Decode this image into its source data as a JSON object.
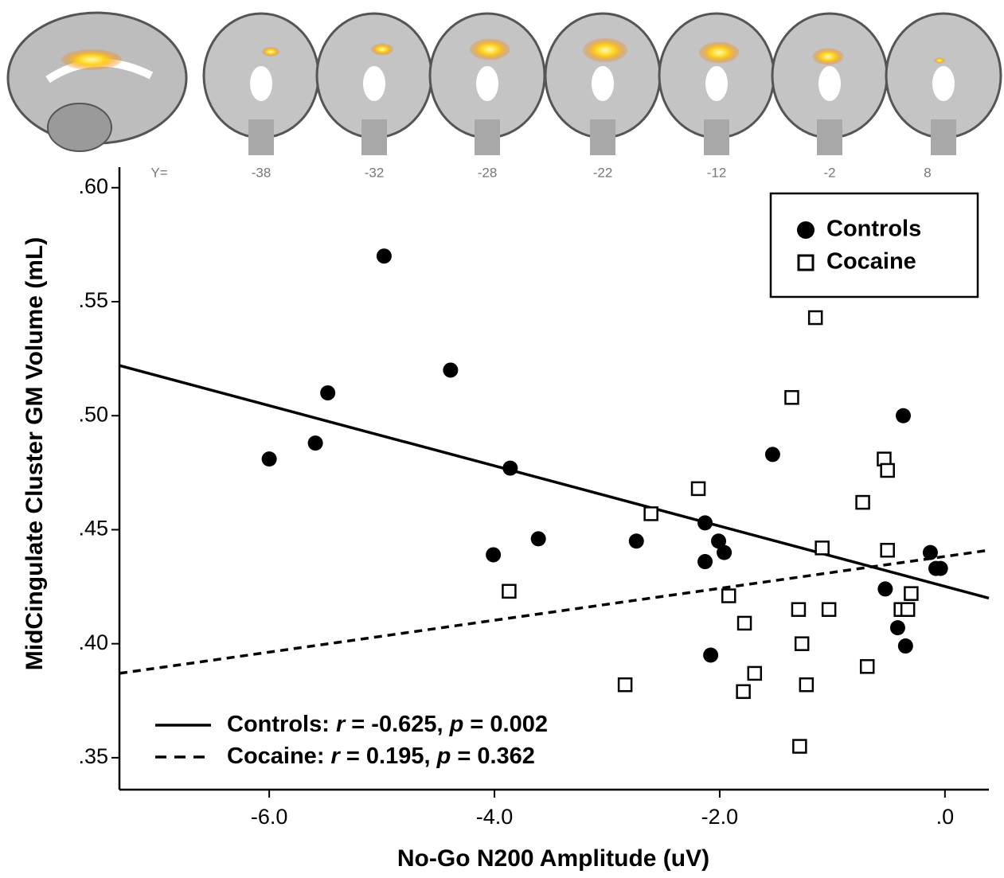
{
  "chart_data": {
    "type": "scatter",
    "xlabel": "No-Go N200 Amplitude (uV)",
    "ylabel": "MidCingulate Cluster GM Volume (mL)",
    "xlim": [
      -7.33,
      0.39
    ],
    "ylim": [
      0.336,
      0.609
    ],
    "xticks": [
      {
        "value": -6,
        "label": "-6.0"
      },
      {
        "value": -4,
        "label": "-4.0"
      },
      {
        "value": -2,
        "label": "-2.0"
      },
      {
        "value": 0,
        "label": ".0"
      }
    ],
    "yticks": [
      {
        "value": 0.35,
        "label": ".35"
      },
      {
        "value": 0.4,
        "label": ".40"
      },
      {
        "value": 0.45,
        "label": ".45"
      },
      {
        "value": 0.5,
        "label": ".50"
      },
      {
        "value": 0.55,
        "label": ".55"
      },
      {
        "value": 0.6,
        "label": ".60"
      }
    ],
    "legend": "upper right",
    "slices": {
      "prefix": "Y=",
      "values": [
        -38,
        -32,
        -28,
        -22,
        -12,
        -2,
        8
      ]
    },
    "series": [
      {
        "name": "Controls",
        "marker": "circle",
        "color": "#000000",
        "x": [
          -6.0,
          -5.59,
          -5.48,
          -4.98,
          -4.39,
          -3.86,
          -4.01,
          -3.61,
          -2.74,
          -2.13,
          -2.13,
          -2.01,
          -1.96,
          -2.08,
          -1.53,
          -0.37,
          -0.53,
          -0.42,
          -0.35,
          -0.13,
          -0.08,
          -0.04
        ],
        "values": [
          0.481,
          0.488,
          0.51,
          0.57,
          0.52,
          0.477,
          0.439,
          0.446,
          0.445,
          0.453,
          0.436,
          0.445,
          0.44,
          0.395,
          0.483,
          0.5,
          0.424,
          0.407,
          0.399,
          0.44,
          0.433,
          0.433
        ],
        "fit": {
          "x": [
            -7.33,
            0.39
          ],
          "values": [
            0.522,
            0.42
          ],
          "dash": false
        },
        "annotation": [
          "Controls: ",
          "r",
          " = -0.625, ",
          "p",
          " = 0.002"
        ]
      },
      {
        "name": "Cocaine",
        "marker": "square",
        "color": "#000000",
        "x": [
          -1.15,
          -1.36,
          -2.19,
          -2.61,
          -3.87,
          -1.92,
          -1.78,
          -1.69,
          -1.79,
          -2.84,
          -1.3,
          -1.27,
          -1.23,
          -1.29,
          -1.03,
          -1.09,
          -0.73,
          -0.54,
          -0.51,
          -0.51,
          -0.69,
          -0.39,
          -0.33,
          -0.3
        ],
        "values": [
          0.543,
          0.508,
          0.468,
          0.457,
          0.423,
          0.421,
          0.409,
          0.387,
          0.379,
          0.382,
          0.415,
          0.4,
          0.382,
          0.355,
          0.415,
          0.442,
          0.462,
          0.481,
          0.476,
          0.441,
          0.39,
          0.415,
          0.415,
          0.422
        ],
        "fit": {
          "x": [
            -7.33,
            0.39
          ],
          "values": [
            0.387,
            0.441
          ],
          "dash": true
        },
        "annotation": [
          "Cocaine: ",
          "r",
          " = 0.195, ",
          "p",
          " = 0.362"
        ]
      }
    ]
  }
}
